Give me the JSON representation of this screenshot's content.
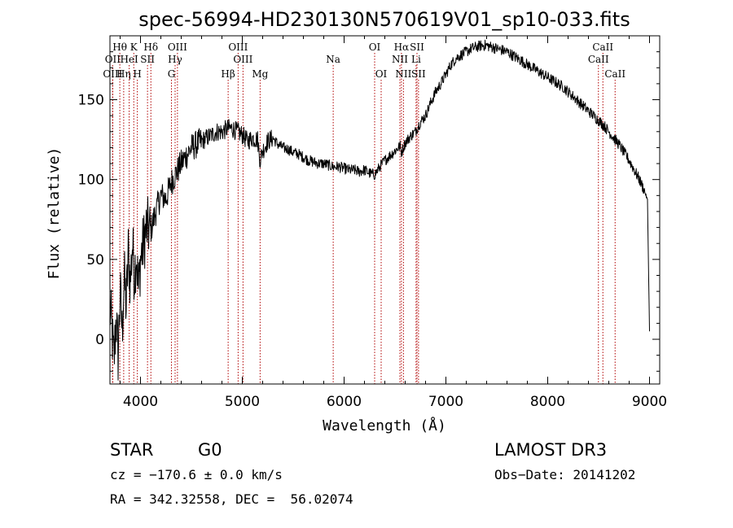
{
  "chart_data": {
    "type": "line",
    "title": "spec-56994-HD230130N570619V01_sp10-033.fits",
    "xlabel": "Wavelength (Å)",
    "ylabel": "Flux (relative)",
    "xlim": [
      3700,
      9100
    ],
    "ylim": [
      -28,
      190
    ],
    "x_ticks": [
      4000,
      5000,
      6000,
      7000,
      8000,
      9000
    ],
    "y_ticks": [
      0,
      50,
      100,
      150
    ],
    "series": [
      {
        "name": "flux",
        "x": [
          3700,
          3720,
          3740,
          3760,
          3780,
          3800,
          3820,
          3840,
          3860,
          3880,
          3900,
          3920,
          3940,
          3960,
          3980,
          4000,
          4030,
          4060,
          4100,
          4150,
          4200,
          4250,
          4300,
          4350,
          4400,
          4450,
          4500,
          4550,
          4600,
          4650,
          4700,
          4750,
          4800,
          4860,
          4900,
          4950,
          5000,
          5050,
          5100,
          5150,
          5175,
          5200,
          5250,
          5300,
          5350,
          5400,
          5450,
          5500,
          5550,
          5600,
          5650,
          5700,
          5750,
          5800,
          5850,
          5890,
          5950,
          6000,
          6050,
          6100,
          6150,
          6200,
          6250,
          6300,
          6350,
          6400,
          6450,
          6500,
          6550,
          6563,
          6600,
          6650,
          6700,
          6750,
          6800,
          6850,
          6900,
          6950,
          7000,
          7050,
          7100,
          7150,
          7200,
          7250,
          7300,
          7350,
          7400,
          7450,
          7500,
          7550,
          7600,
          7650,
          7700,
          7750,
          7800,
          7850,
          7900,
          7950,
          8000,
          8050,
          8100,
          8150,
          8200,
          8250,
          8300,
          8350,
          8400,
          8450,
          8500,
          8550,
          8600,
          8650,
          8700,
          8750,
          8800,
          8850,
          8900,
          8950,
          8980,
          9000
        ],
        "y": [
          20,
          5,
          -15,
          15,
          -10,
          30,
          5,
          40,
          20,
          55,
          35,
          60,
          40,
          55,
          30,
          50,
          60,
          70,
          68,
          80,
          90,
          88,
          98,
          104,
          110,
          115,
          120,
          122,
          124,
          126,
          128,
          130,
          130,
          132,
          132,
          130,
          128,
          124,
          126,
          125,
          112,
          118,
          124,
          126,
          122,
          120,
          119,
          117,
          116,
          114,
          112,
          111,
          110,
          110,
          109,
          108,
          108,
          107,
          106,
          106,
          105,
          106,
          104,
          103,
          108,
          112,
          115,
          118,
          121,
          117,
          123,
          127,
          130,
          136,
          140,
          148,
          155,
          160,
          166,
          172,
          176,
          178,
          180,
          182,
          183,
          184,
          184,
          183,
          182,
          181,
          180,
          178,
          176,
          174,
          172,
          170,
          168,
          166,
          164,
          162,
          160,
          158,
          155,
          152,
          149,
          146,
          143,
          140,
          137,
          134,
          130,
          126,
          122,
          117,
          112,
          106,
          100,
          93,
          87,
          5
        ]
      }
    ],
    "spectral_lines": [
      {
        "label": "Hθ",
        "x": 3797,
        "row": 1
      },
      {
        "label": "OII",
        "x": 3727,
        "row": 2
      },
      {
        "label": "OIII",
        "x": 3727,
        "row": 3
      },
      {
        "label": "Hη",
        "x": 3835,
        "row": 3
      },
      {
        "label": "K",
        "x": 3934,
        "row": 1
      },
      {
        "label": "HeI",
        "x": 3889,
        "row": 2
      },
      {
        "label": "H",
        "x": 3969,
        "row": 3
      },
      {
        "label": "Hδ",
        "x": 4102,
        "row": 1
      },
      {
        "label": "SII",
        "x": 4069,
        "row": 2
      },
      {
        "label": "OIII",
        "x": 4363,
        "row": 1
      },
      {
        "label": "Hγ",
        "x": 4340,
        "row": 2
      },
      {
        "label": "G",
        "x": 4304,
        "row": 3
      },
      {
        "label": "Hβ",
        "x": 4861,
        "row": 3
      },
      {
        "label": "OIII",
        "x": 4959,
        "row": 1
      },
      {
        "label": "OIII",
        "x": 5007,
        "row": 2
      },
      {
        "label": "Mg",
        "x": 5175,
        "row": 3
      },
      {
        "label": "Na",
        "x": 5893,
        "row": 2
      },
      {
        "label": "OI",
        "x": 6300,
        "row": 1
      },
      {
        "label": "OI",
        "x": 6364,
        "row": 3
      },
      {
        "label": "Hα",
        "x": 6563,
        "row": 1
      },
      {
        "label": "NII",
        "x": 6548,
        "row": 2
      },
      {
        "label": "NII",
        "x": 6583,
        "row": 3
      },
      {
        "label": "SII",
        "x": 6716,
        "row": 1
      },
      {
        "label": "Li",
        "x": 6707,
        "row": 2
      },
      {
        "label": "SII",
        "x": 6731,
        "row": 3
      },
      {
        "label": "CaII",
        "x": 8542,
        "row": 1
      },
      {
        "label": "CaII",
        "x": 8498,
        "row": 2
      },
      {
        "label": "CaII",
        "x": 8662,
        "row": 3
      }
    ]
  },
  "info": {
    "object_type": "STAR",
    "subclass": "G0",
    "survey": "LAMOST DR3",
    "redshift": "cz = −170.6 ± 0.0 km/s",
    "obs_date": "Obs−Date: 20141202",
    "coords": "RA = 342.32558, DEC =  56.02074"
  }
}
